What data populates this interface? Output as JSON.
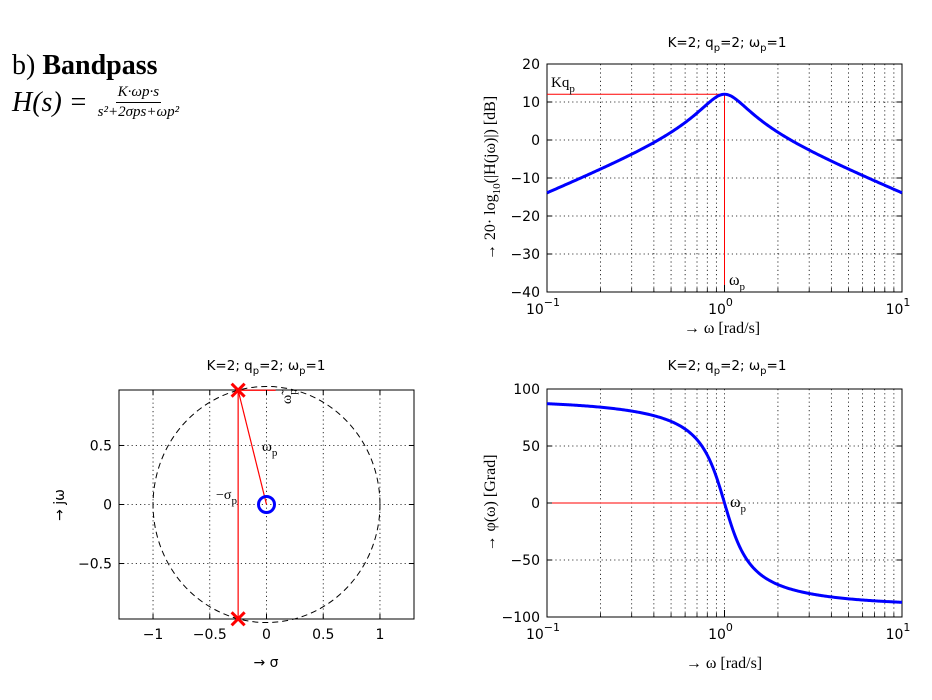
{
  "heading": {
    "part": "b)",
    "title": "Bandpass",
    "lhs": "H(s) =",
    "numerator": "K·ωp·s",
    "denominator": "s²+2σps+ωp²"
  },
  "colors": {
    "curve": "#0000ff",
    "marker": "#ff0000",
    "guide": "#ff0000",
    "grid": "#000000"
  },
  "chart_data": [
    {
      "id": "magnitude",
      "type": "line",
      "title_main": "K=2; q",
      "title_sub1": "p",
      "title_mid": "=2; ω",
      "title_sub2": "p",
      "title_end": "=1",
      "xlabel": "→ ω [rad/s]",
      "ylabel": "→ 20· log10(|H(jω)|) [dB]",
      "xscale": "log",
      "xlim": [
        0.1,
        10
      ],
      "ylim": [
        -40,
        20
      ],
      "xticks": [
        0.1,
        1,
        10
      ],
      "xtick_labels": [
        {
          "base": "10",
          "exp": "−1"
        },
        {
          "base": "10",
          "exp": "0"
        },
        {
          "base": "10",
          "exp": "1"
        }
      ],
      "yticks": [
        -40,
        -30,
        -20,
        -10,
        0,
        10,
        20
      ],
      "grid": true,
      "series": [
        {
          "formula": "20*log10(K*w/sqrt((1-w^2)^2+(w/qp)^2))",
          "K": 2,
          "qp": 2,
          "wp": 1
        }
      ],
      "annotations": [
        {
          "text": "Kq",
          "sub": "p",
          "at": [
            0.1,
            12.04
          ]
        },
        {
          "text": "ω",
          "sub": "p",
          "at": [
            1,
            -40
          ]
        }
      ],
      "guides": {
        "peak_db": 12.04,
        "peak_w": 1
      }
    },
    {
      "id": "phase",
      "type": "line",
      "title_main": "K=2; q",
      "title_sub1": "p",
      "title_mid": "=2; ω",
      "title_sub2": "p",
      "title_end": "=1",
      "xlabel": "→ ω [rad/s]",
      "ylabel": "→ φ(ω) [Grad]",
      "xscale": "log",
      "xlim": [
        0.1,
        10
      ],
      "ylim": [
        -100,
        100
      ],
      "xticks": [
        0.1,
        1,
        10
      ],
      "xtick_labels": [
        {
          "base": "10",
          "exp": "−1"
        },
        {
          "base": "10",
          "exp": "0"
        },
        {
          "base": "10",
          "exp": "1"
        }
      ],
      "yticks": [
        -100,
        -50,
        0,
        50,
        100
      ],
      "grid": true,
      "series": [
        {
          "formula": "90 - atan2(w/qp, 1-w^2)",
          "qp": 2
        }
      ],
      "annotations": [
        {
          "text": "ω",
          "sub": "p",
          "at": [
            1,
            0
          ]
        }
      ]
    },
    {
      "id": "pole-zero",
      "type": "scatter",
      "title_main": "K=2; q",
      "title_sub1": "p",
      "title_mid": "=2; ω",
      "title_sub2": "p",
      "title_end": "=1",
      "xlabel": "→ σ",
      "ylabel": "→ jω",
      "xlim": [
        -1.3,
        1.3
      ],
      "ylim": [
        -0.97,
        0.97
      ],
      "xticks": [
        -1,
        -0.5,
        0,
        0.5,
        1
      ],
      "xtick_labels": [
        "−1",
        "−0.5",
        "0",
        "0.5",
        "1"
      ],
      "yticks": [
        -0.5,
        0,
        0.5
      ],
      "ytick_labels": [
        "−0.5",
        "0",
        "0.5"
      ],
      "grid": true,
      "poles": [
        [
          -0.25,
          0.968
        ],
        [
          -0.25,
          -0.968
        ]
      ],
      "zeros": [
        [
          0,
          0
        ]
      ],
      "unit_circle_radius": 1,
      "annotations": [
        {
          "text": "ω",
          "sub": "p",
          "at": [
            0.02,
            0.5
          ]
        },
        {
          "text": "−σ",
          "sub": "p",
          "at": [
            -0.45,
            0.06
          ]
        },
        {
          "text": "ω̃",
          "sub": "p",
          "at": [
            0.12,
            0.88
          ]
        }
      ]
    }
  ]
}
